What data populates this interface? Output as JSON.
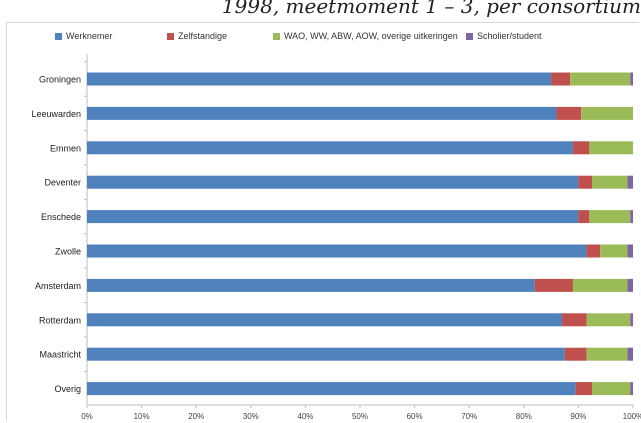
{
  "title_fragment": "1998, meetmoment 1 – 3, per consortium",
  "chart_data": {
    "type": "bar",
    "orientation": "horizontal",
    "stacked": "percent",
    "categories": [
      "Groningen",
      "Leeuwarden",
      "Emmen",
      "Deventer",
      "Enschede",
      "Zwolle",
      "Amsterdam",
      "Rotterdam",
      "Maastricht",
      "Overig"
    ],
    "series": [
      {
        "name": "Werknemer",
        "color": "#4f81bd",
        "values": [
          85,
          86,
          89,
          90,
          90,
          91.5,
          82,
          87,
          87.5,
          89.5
        ]
      },
      {
        "name": "Zelfstandige",
        "color": "#c0504d",
        "values": [
          3.5,
          4.5,
          3,
          2.5,
          2,
          2.5,
          7,
          4.5,
          4,
          3
        ]
      },
      {
        "name": "WAO, WW, ABW, AOW, overige uitkeringen",
        "color": "#9bbb59",
        "values": [
          11,
          9.5,
          8,
          6.5,
          7.5,
          5,
          10,
          8,
          7.5,
          7
        ]
      },
      {
        "name": "Scholier/student",
        "color": "#8064a2",
        "values": [
          0.5,
          0,
          0,
          1,
          0.5,
          1,
          1,
          0.5,
          1,
          0.5
        ]
      }
    ],
    "xlim": [
      0,
      100
    ],
    "xticks": [
      "0%",
      "10%",
      "20%",
      "30%",
      "40%",
      "50%",
      "60%",
      "70%",
      "80%",
      "90%",
      "100%"
    ],
    "grid": false,
    "legend_position": "top"
  }
}
